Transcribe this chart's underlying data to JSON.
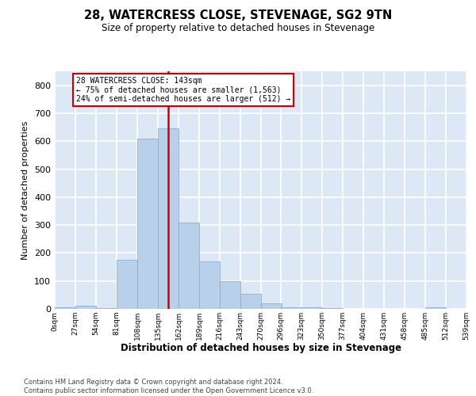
{
  "title": "28, WATERCRESS CLOSE, STEVENAGE, SG2 9TN",
  "subtitle": "Size of property relative to detached houses in Stevenage",
  "xlabel": "Distribution of detached houses by size in Stevenage",
  "ylabel": "Number of detached properties",
  "annotation_lines": [
    "28 WATERCRESS CLOSE: 143sqm",
    "← 75% of detached houses are smaller (1,563)",
    "24% of semi-detached houses are larger (512) →"
  ],
  "bins": [
    0,
    27,
    54,
    81,
    108,
    135,
    162,
    189,
    216,
    243,
    270,
    296,
    323,
    350,
    377,
    404,
    431,
    458,
    485,
    512,
    539
  ],
  "counts": [
    5,
    10,
    2,
    175,
    610,
    645,
    310,
    170,
    100,
    55,
    20,
    5,
    5,
    3,
    0,
    0,
    0,
    0,
    5,
    0
  ],
  "bar_color": "#b8d0ea",
  "bar_edge_color": "#7aaad0",
  "vline_color": "#cc0000",
  "vline_x": 148.5,
  "annotation_box_edgecolor": "#cc0000",
  "background_color": "#dce8f5",
  "grid_color": "#ffffff",
  "ylim": [
    0,
    850
  ],
  "yticks": [
    0,
    100,
    200,
    300,
    400,
    500,
    600,
    700,
    800
  ],
  "footer_line1": "Contains HM Land Registry data © Crown copyright and database right 2024.",
  "footer_line2": "Contains public sector information licensed under the Open Government Licence v3.0."
}
